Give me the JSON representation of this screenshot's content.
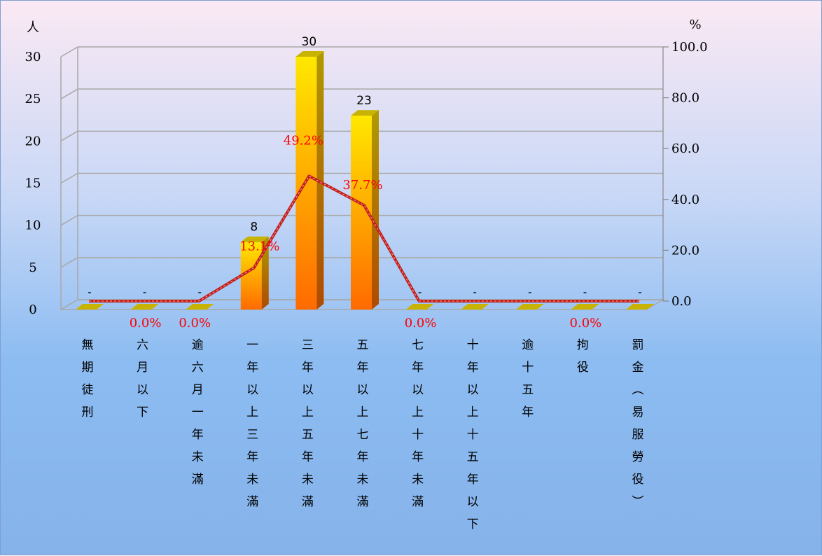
{
  "chart_data": {
    "type": "bar",
    "categories": [
      "無期徒刑",
      "六月以下",
      "逾六月一年未滿",
      "一年以上三年未滿",
      "三年以上五年未滿",
      "五年以上七年未滿",
      "七年以上十年未滿",
      "十年以上十五年以下",
      "逾十五年",
      "拘役",
      "罰金(易服勞役)"
    ],
    "series": [
      {
        "type": "bar",
        "axis": "left",
        "values": [
          0,
          0,
          0,
          8,
          30,
          23,
          0,
          0,
          0,
          0,
          0
        ],
        "labels": [
          "-",
          "-",
          "-",
          "8",
          "30",
          "23",
          "-",
          "-",
          "-",
          "-",
          "-"
        ]
      },
      {
        "type": "line",
        "axis": "right",
        "values": [
          0,
          0,
          0,
          13.1,
          49.2,
          37.7,
          0,
          0,
          0,
          0,
          0
        ],
        "labels": [
          "",
          "0.0%",
          "0.0%",
          "13.1%",
          "49.2%",
          "37.7%",
          "0.0%",
          "",
          "",
          "0.0%",
          ""
        ]
      }
    ],
    "y_left": {
      "unit": "人",
      "range": [
        0,
        30
      ],
      "ticks": [
        "0",
        "5",
        "10",
        "15",
        "20",
        "25",
        "30"
      ]
    },
    "y_right": {
      "unit": "%",
      "range": [
        0,
        100
      ],
      "ticks": [
        "0.0",
        "20.0",
        "40.0",
        "60.0",
        "80.0",
        "100.0"
      ]
    },
    "grid": true,
    "colors": {
      "bar_top": "#ffe800",
      "bar_bottom": "#ff6a00",
      "bar_side": "#b06a10",
      "line": "#c0201c",
      "percent_label": "#ff0000",
      "floor": "#a8a8a8"
    }
  }
}
